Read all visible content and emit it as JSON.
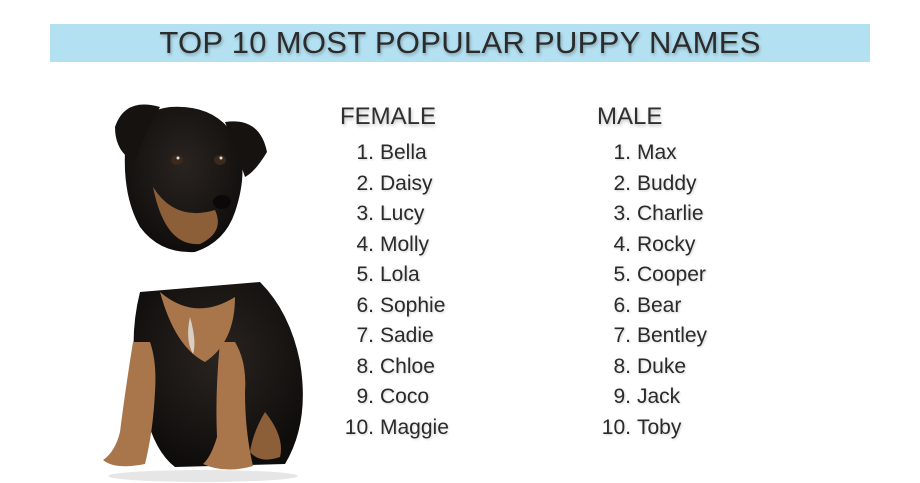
{
  "title": "TOP 10 MOST POPULAR PUPPY NAMES",
  "colors": {
    "banner": "#b4e1f2",
    "text": "#2b2b2b"
  },
  "image": {
    "subject": "puppy"
  },
  "female": {
    "heading": "FEMALE",
    "names": [
      {
        "rank": "1.",
        "name": "Bella"
      },
      {
        "rank": "2.",
        "name": "Daisy"
      },
      {
        "rank": "3.",
        "name": "Lucy"
      },
      {
        "rank": "4.",
        "name": "Molly"
      },
      {
        "rank": "5.",
        "name": "Lola"
      },
      {
        "rank": "6.",
        "name": "Sophie"
      },
      {
        "rank": "7.",
        "name": "Sadie"
      },
      {
        "rank": "8.",
        "name": "Chloe"
      },
      {
        "rank": "9.",
        "name": "Coco"
      },
      {
        "rank": "10.",
        "name": "Maggie"
      }
    ]
  },
  "male": {
    "heading": "MALE",
    "names": [
      {
        "rank": "1.",
        "name": "Max"
      },
      {
        "rank": "2.",
        "name": "Buddy"
      },
      {
        "rank": "3.",
        "name": "Charlie"
      },
      {
        "rank": "4.",
        "name": "Rocky"
      },
      {
        "rank": "5.",
        "name": "Cooper"
      },
      {
        "rank": "6.",
        "name": "Bear"
      },
      {
        "rank": "7.",
        "name": "Bentley"
      },
      {
        "rank": "8.",
        "name": "Duke"
      },
      {
        "rank": "9.",
        "name": "Jack"
      },
      {
        "rank": "10.",
        "name": "Toby"
      }
    ]
  }
}
